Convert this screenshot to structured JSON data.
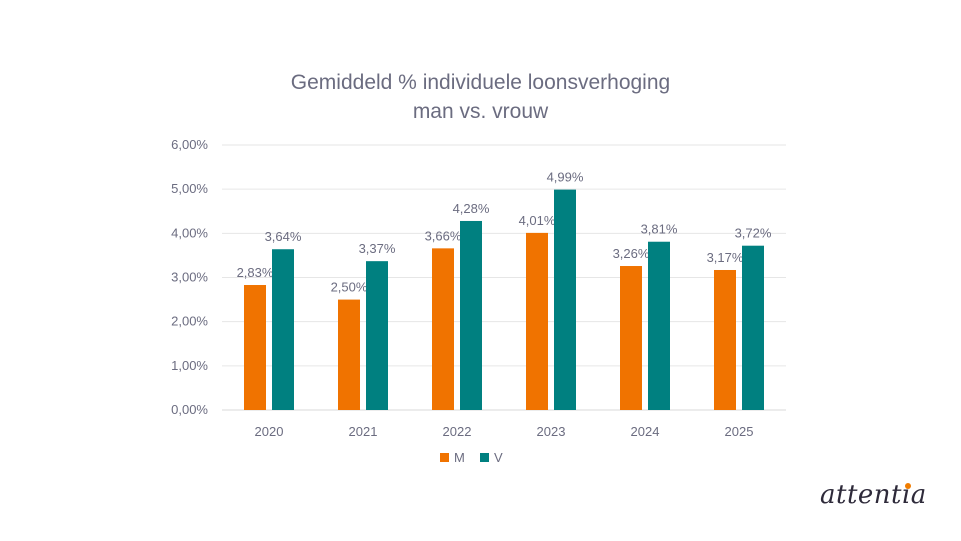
{
  "chart_data": {
    "type": "bar",
    "title_lines": [
      "Gemiddeld % individuele loonsverhoging",
      "man vs. vrouw"
    ],
    "categories": [
      "2020",
      "2021",
      "2022",
      "2023",
      "2024",
      "2025"
    ],
    "series": [
      {
        "name": "M",
        "color": "#f07300",
        "values": [
          2.83,
          2.5,
          3.66,
          4.01,
          3.26,
          3.17
        ],
        "labels": [
          "2,83%",
          "2,50%",
          "3,66%",
          "4,01%",
          "3,26%",
          "3,17%"
        ]
      },
      {
        "name": "V",
        "color": "#008080",
        "values": [
          3.64,
          3.37,
          4.28,
          4.99,
          3.81,
          3.72
        ],
        "labels": [
          "3,64%",
          "3,37%",
          "4,28%",
          "4,99%",
          "3,81%",
          "3,72%"
        ]
      }
    ],
    "ylim": [
      0,
      6
    ],
    "yticks": [
      0,
      1,
      2,
      3,
      4,
      5,
      6
    ],
    "ytick_labels": [
      "0,00%",
      "1,00%",
      "2,00%",
      "3,00%",
      "4,00%",
      "5,00%",
      "6,00%"
    ],
    "grid": true,
    "legend_position": "bottom"
  },
  "logo": {
    "text": "attentia",
    "dot_color": "#f07c00"
  }
}
